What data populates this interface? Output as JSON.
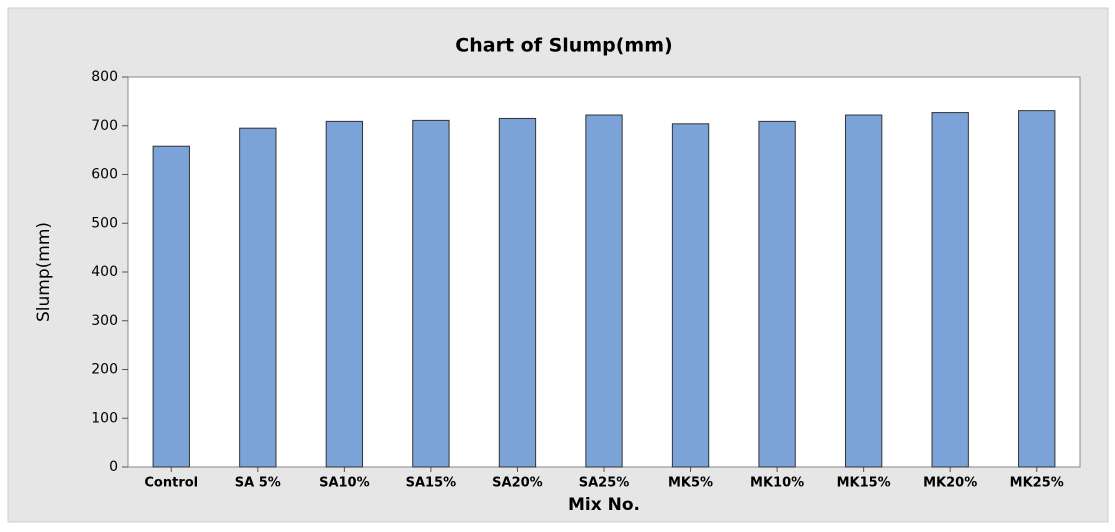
{
  "chart_data": {
    "type": "bar",
    "title": "Chart of Slump(mm)",
    "x_label": "Mix No.",
    "y_label": "Slump(mm)",
    "categories": [
      "Control",
      "SA 5%",
      "SA10%",
      "SA15%",
      "SA20%",
      "SA25%",
      "MK5%",
      "MK10%",
      "MK15%",
      "MK20%",
      "MK25%"
    ],
    "values": [
      658,
      695,
      709,
      711,
      715,
      722,
      704,
      709,
      722,
      727,
      731
    ],
    "color": "#7ba3d8",
    "ylim": [
      0,
      800
    ],
    "yticks": [
      0,
      100,
      200,
      300,
      400,
      500,
      600,
      700,
      800
    ],
    "grid": false
  }
}
